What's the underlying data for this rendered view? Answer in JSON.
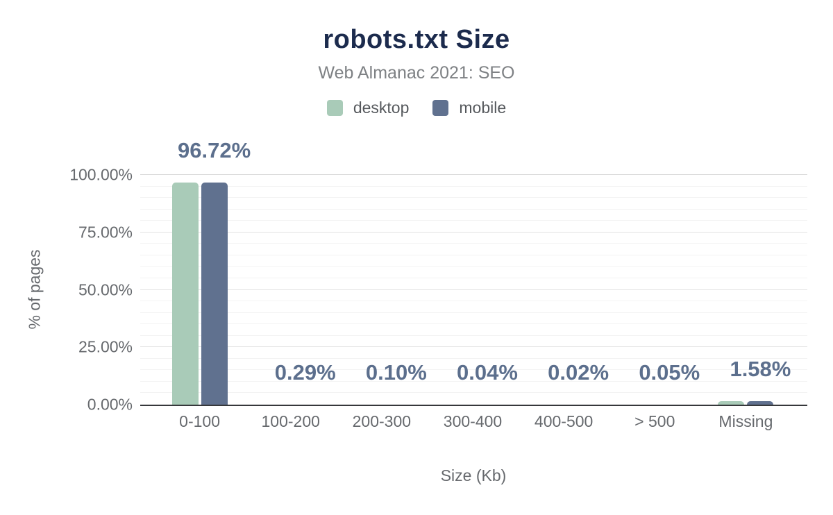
{
  "title": "robots.txt Size",
  "subtitle": "Web Almanac 2021: SEO",
  "legend": {
    "items": [
      {
        "label": "desktop",
        "color": "#a9cbb8"
      },
      {
        "label": "mobile",
        "color": "#60718f"
      }
    ]
  },
  "colors": {
    "title_text": "#1c2b4d",
    "subtitle_text": "#7e8184",
    "axis_text": "#66696d",
    "data_label_text": "#5c6f8d",
    "axis_line": "#36383b",
    "gridline_major": "#e3e3e3",
    "gridline_minor": "#f3f3f3",
    "desktop_bar": "#a9cbb8",
    "mobile_bar": "#60718f",
    "background": "#ffffff"
  },
  "chart_data": {
    "type": "bar",
    "title": "robots.txt Size",
    "subtitle": "Web Almanac 2021: SEO",
    "categories": [
      "0-100",
      "100-200",
      "200-300",
      "300-400",
      "400-500",
      "> 500",
      "Missing"
    ],
    "series": [
      {
        "name": "desktop",
        "color": "#a9cbb8",
        "values": [
          96.72,
          0.29,
          0.1,
          0.04,
          0.02,
          0.05,
          1.58
        ]
      },
      {
        "name": "mobile",
        "color": "#60718f",
        "values": [
          96.72,
          0.29,
          0.1,
          0.04,
          0.02,
          0.05,
          1.58
        ]
      }
    ],
    "data_labels": [
      "96.72%",
      "0.29%",
      "0.10%",
      "0.04%",
      "0.02%",
      "0.05%",
      "1.58%"
    ],
    "xlabel": "Size (Kb)",
    "ylabel": "% of pages",
    "ylim": [
      0,
      100
    ],
    "yticks": [
      {
        "label": "0.00%",
        "value": 0
      },
      {
        "label": "25.00%",
        "value": 25
      },
      {
        "label": "50.00%",
        "value": 50
      },
      {
        "label": "75.00%",
        "value": 75
      },
      {
        "label": "100.00%",
        "value": 100
      }
    ],
    "grid": "horizontal; minor gridlines every 5%, major gridlines every 25%",
    "legend_position": "top-center",
    "bar_corner_radius_px": 5
  }
}
